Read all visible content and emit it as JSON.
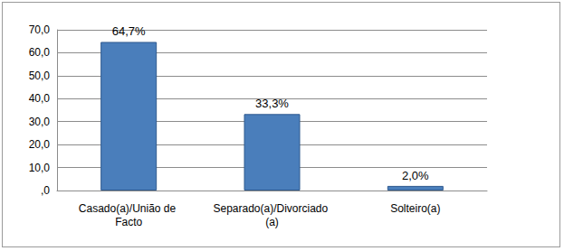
{
  "chart_data": {
    "type": "bar",
    "categories": [
      "Casado(a)/União de Facto",
      "Separado(a)/Divorciado (a)",
      "Solteiro(a)"
    ],
    "values": [
      64.7,
      33.3,
      2.0
    ],
    "value_labels": [
      "64,7%",
      "33,3%",
      "2,0%"
    ],
    "data_labels": true,
    "color": "#4a7ebb",
    "ylim": [
      0,
      70
    ],
    "yticks": [
      {
        "value": 0,
        "label": ",0"
      },
      {
        "value": 10,
        "label": "10,0"
      },
      {
        "value": 20,
        "label": "20,0"
      },
      {
        "value": 30,
        "label": "30,0"
      },
      {
        "value": 40,
        "label": "40,0"
      },
      {
        "value": 50,
        "label": "50,0"
      },
      {
        "value": 60,
        "label": "60,0"
      },
      {
        "value": 70,
        "label": "70,0"
      }
    ],
    "grid": true
  }
}
